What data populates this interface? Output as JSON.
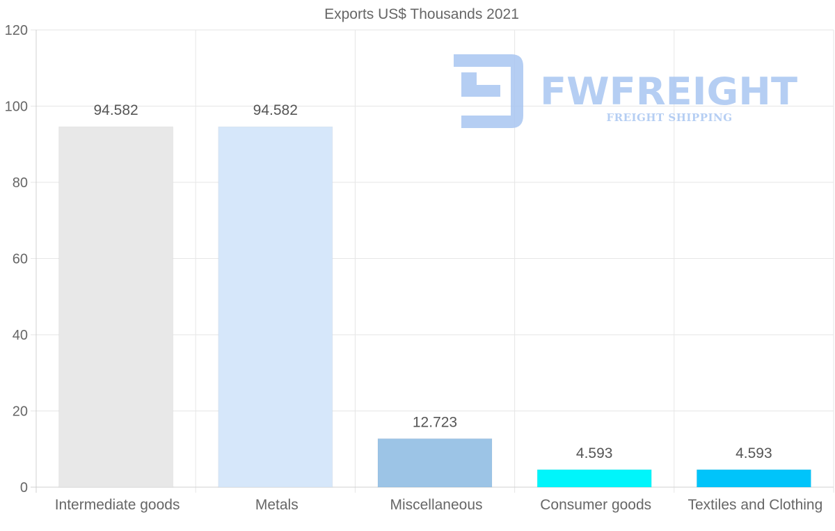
{
  "chart_data": {
    "type": "bar",
    "title": "Exports US$ Thousands 2021",
    "categories": [
      "Intermediate goods",
      "Metals",
      "Miscellaneous",
      "Consumer goods",
      "Textiles and Clothing"
    ],
    "values": [
      94.582,
      94.582,
      12.723,
      4.593,
      4.593
    ],
    "value_labels": [
      "94.582",
      "94.582",
      "12.723",
      "4.593",
      "4.593"
    ],
    "colors": [
      "#e8e8e8",
      "#d6e7fa",
      "#9cc4e6",
      "#00f5fb",
      "#00c4fa"
    ],
    "ylim": [
      0,
      120
    ],
    "yticks": [
      "0",
      "20",
      "40",
      "60",
      "80",
      "100",
      "120"
    ],
    "xlabel": "",
    "ylabel": "",
    "grid": true,
    "legend": "none"
  },
  "watermark": {
    "brand": "FWFREIGHT",
    "tagline": "FREIGHT SHIPPING",
    "color": "#a9c6f2"
  }
}
